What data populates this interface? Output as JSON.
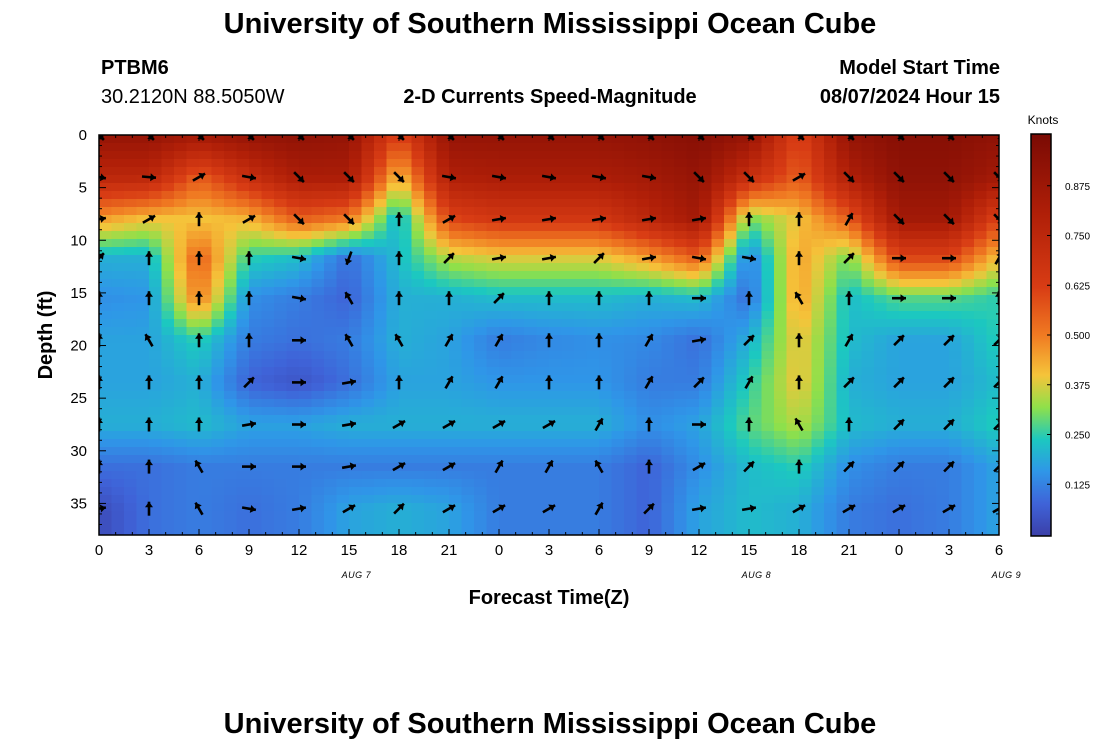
{
  "header": {
    "title": "University of Southern Mississippi Ocean Cube",
    "footer_title": "University of Southern Mississippi Ocean Cube",
    "station_id": "PTBM6",
    "station_coords": "30.2120N  88.5050W",
    "product_title": "2-D Currents Speed-Magnitude",
    "model_start_label": "Model Start Time",
    "model_start_value": "08/07/2024 Hour 15"
  },
  "chart_data": {
    "type": "heatmap",
    "title": "2-D Currents Speed-Magnitude",
    "xlabel": "Forecast Time(Z)",
    "ylabel": "Depth (ft)",
    "x_tick_labels": [
      "0",
      "3",
      "6",
      "9",
      "12",
      "15",
      "18",
      "21",
      "0",
      "3",
      "6",
      "9",
      "12",
      "15",
      "18",
      "21",
      "0",
      "3",
      "6"
    ],
    "x_range_hours": [
      0,
      54
    ],
    "date_labels": [
      {
        "hour": 15.5,
        "text": "AUG 7"
      },
      {
        "hour": 39.5,
        "text": "AUG 8"
      },
      {
        "hour": 54.5,
        "text": "AUG 9"
      }
    ],
    "y_ticks": [
      0,
      5,
      10,
      15,
      20,
      25,
      30,
      35
    ],
    "ylim": [
      0,
      38
    ],
    "colorbar": {
      "title": "Knots",
      "range": [
        0,
        1.0
      ],
      "ticks": [
        "0.125",
        "0.250",
        "0.375",
        "0.500",
        "0.625",
        "0.750",
        "0.875"
      ],
      "tick_values": [
        0.125,
        0.25,
        0.375,
        0.5,
        0.625,
        0.75,
        0.875
      ]
    },
    "vector_times_hours": [
      0,
      3,
      6,
      9,
      12,
      15,
      18,
      21,
      24,
      27,
      30,
      33,
      36,
      39,
      42,
      45,
      48,
      51,
      54
    ],
    "vector_depths_ft": [
      0,
      4,
      8,
      11.7,
      15.5,
      19.5,
      23.5,
      27.5,
      31.5,
      35.5
    ],
    "speed_knots_rows": [
      [
        0.9,
        0.9,
        0.85,
        0.9,
        0.92,
        0.9,
        0.6,
        0.9,
        0.9,
        0.9,
        0.9,
        0.92,
        0.95,
        0.9,
        0.6,
        0.9,
        0.95,
        0.95,
        0.92
      ],
      [
        0.75,
        0.75,
        0.55,
        0.7,
        0.82,
        0.82,
        0.4,
        0.8,
        0.82,
        0.82,
        0.82,
        0.85,
        0.9,
        0.7,
        0.55,
        0.8,
        0.92,
        0.92,
        0.85
      ],
      [
        0.45,
        0.4,
        0.4,
        0.42,
        0.55,
        0.5,
        0.2,
        0.6,
        0.65,
        0.65,
        0.65,
        0.75,
        0.85,
        0.3,
        0.4,
        0.55,
        0.85,
        0.85,
        0.6
      ],
      [
        0.2,
        0.2,
        0.55,
        0.25,
        0.22,
        0.1,
        0.22,
        0.35,
        0.38,
        0.38,
        0.38,
        0.45,
        0.55,
        0.12,
        0.45,
        0.3,
        0.6,
        0.6,
        0.4
      ],
      [
        0.15,
        0.16,
        0.5,
        0.15,
        0.12,
        0.08,
        0.2,
        0.2,
        0.22,
        0.22,
        0.22,
        0.2,
        0.22,
        0.1,
        0.45,
        0.22,
        0.28,
        0.28,
        0.25
      ],
      [
        0.18,
        0.18,
        0.25,
        0.12,
        0.1,
        0.12,
        0.2,
        0.18,
        0.12,
        0.14,
        0.15,
        0.14,
        0.1,
        0.2,
        0.4,
        0.22,
        0.18,
        0.18,
        0.25
      ],
      [
        0.18,
        0.18,
        0.2,
        0.08,
        0.05,
        0.1,
        0.18,
        0.18,
        0.16,
        0.16,
        0.16,
        0.12,
        0.12,
        0.25,
        0.4,
        0.2,
        0.18,
        0.18,
        0.22
      ],
      [
        0.2,
        0.2,
        0.22,
        0.18,
        0.18,
        0.2,
        0.2,
        0.2,
        0.2,
        0.2,
        0.2,
        0.15,
        0.18,
        0.28,
        0.35,
        0.22,
        0.2,
        0.2,
        0.25
      ],
      [
        0.1,
        0.1,
        0.12,
        0.12,
        0.12,
        0.12,
        0.12,
        0.12,
        0.12,
        0.12,
        0.12,
        0.08,
        0.15,
        0.22,
        0.25,
        0.15,
        0.12,
        0.12,
        0.18
      ],
      [
        0.03,
        0.1,
        0.12,
        0.1,
        0.12,
        0.18,
        0.2,
        0.18,
        0.12,
        0.12,
        0.12,
        0.08,
        0.18,
        0.22,
        0.2,
        0.12,
        0.1,
        0.12,
        0.18
      ]
    ],
    "direction_rows_deg": [
      [
        135,
        135,
        135,
        135,
        135,
        135,
        135,
        135,
        135,
        135,
        135,
        135,
        135,
        135,
        135,
        135,
        135,
        135,
        135
      ],
      [
        100,
        95,
        60,
        100,
        135,
        135,
        135,
        100,
        100,
        100,
        100,
        100,
        135,
        135,
        60,
        135,
        135,
        135,
        135
      ],
      [
        80,
        60,
        0,
        60,
        135,
        135,
        0,
        60,
        80,
        80,
        80,
        80,
        80,
        0,
        0,
        30,
        135,
        135,
        135
      ],
      [
        45,
        0,
        0,
        0,
        100,
        200,
        0,
        45,
        80,
        80,
        45,
        80,
        100,
        100,
        0,
        45,
        90,
        90,
        30
      ],
      [
        0,
        0,
        0,
        0,
        100,
        330,
        0,
        0,
        45,
        0,
        0,
        0,
        90,
        0,
        330,
        0,
        90,
        90,
        0
      ],
      [
        0,
        330,
        0,
        0,
        90,
        330,
        330,
        30,
        30,
        0,
        0,
        30,
        80,
        45,
        0,
        30,
        45,
        45,
        45
      ],
      [
        0,
        0,
        0,
        45,
        90,
        80,
        0,
        30,
        30,
        0,
        0,
        30,
        45,
        30,
        0,
        45,
        45,
        45,
        45
      ],
      [
        0,
        0,
        0,
        80,
        90,
        80,
        60,
        60,
        60,
        60,
        30,
        0,
        90,
        0,
        330,
        0,
        45,
        45,
        45
      ],
      [
        0,
        0,
        330,
        90,
        90,
        80,
        60,
        60,
        30,
        30,
        330,
        0,
        60,
        45,
        0,
        45,
        45,
        45,
        45
      ],
      [
        80,
        0,
        330,
        100,
        80,
        60,
        45,
        60,
        60,
        60,
        30,
        45,
        80,
        80,
        60,
        60,
        60,
        60,
        60
      ]
    ]
  }
}
